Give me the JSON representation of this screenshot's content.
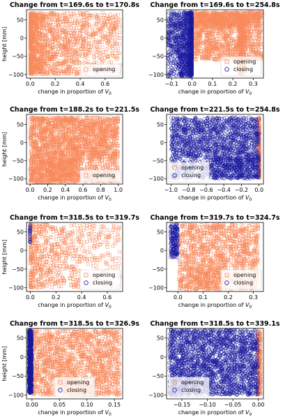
{
  "figure": {
    "type": "grid",
    "rows": 4,
    "cols": 2
  },
  "colors": {
    "opening": "#F88A5C",
    "closing": "#17179E",
    "frame": "#000000"
  },
  "chart_data": [
    {
      "type": "scatter",
      "title": "Change from t=169.6s to t=170.8s",
      "xlabel": "change in proportion of V0",
      "ylabel": "height [mm]",
      "xlim": [
        -0.03,
        0.74
      ],
      "ylim": [
        -110,
        78
      ],
      "xticks": [
        0,
        0.2,
        0.4,
        0.6
      ],
      "xticklabels": [
        "0.0",
        "0.2",
        "0.4",
        "0.6"
      ],
      "yticks": [
        50,
        0,
        -50,
        -100
      ],
      "yticklabels": [
        "50",
        "0",
        "−50",
        "−100"
      ],
      "legend": {
        "position": "lower-right",
        "entries": [
          "opening"
        ]
      },
      "series": [
        {
          "name": "opening",
          "marker": "square",
          "clusters": [
            {
              "x": [
                0,
                0.72
              ],
              "y": [
                -100,
                70
              ],
              "density": 1600,
              "shape": "fan",
              "x_bias": 2.2
            }
          ]
        }
      ]
    },
    {
      "type": "scatter",
      "title": "Change from t=169.6s to t=254.8s",
      "xlabel": "change in proportion of V0",
      "ylabel": "",
      "xlim": [
        -0.125,
        0.35
      ],
      "ylim": [
        -110,
        78
      ],
      "xticks": [
        -0.1,
        0.0,
        0.1,
        0.2,
        0.3
      ],
      "xticklabels": [
        "−0.1",
        "0.0",
        "0.1",
        "0.2",
        "0.3"
      ],
      "yticks": [
        50,
        0,
        -50,
        -100
      ],
      "yticklabels": [
        "50",
        "0",
        "−50",
        "−100"
      ],
      "legend": {
        "position": "lower-right",
        "entries": [
          "opening",
          "closing"
        ]
      },
      "series": [
        {
          "name": "opening",
          "marker": "square",
          "clusters": [
            {
              "x": [
                0.0,
                0.34
              ],
              "y": [
                -60,
                72
              ],
              "density": 1100,
              "shape": "uniform"
            },
            {
              "x": [
                0.23,
                0.26
              ],
              "y": [
                -100,
                70
              ],
              "density": 250,
              "shape": "uniform"
            },
            {
              "x": [
                0.0,
                0.34
              ],
              "y": [
                30,
                72
              ],
              "density": 500,
              "shape": "uniform"
            }
          ]
        },
        {
          "name": "closing",
          "marker": "circle",
          "clusters": [
            {
              "x": [
                -0.12,
                0.0
              ],
              "y": [
                -105,
                72
              ],
              "density": 1300,
              "shape": "fan-left",
              "x_bias": 2.0
            }
          ]
        }
      ]
    },
    {
      "type": "scatter",
      "title": "Change from t=188.2s to t=221.5s",
      "xlabel": "change in proportion of V0",
      "ylabel": "height [mm]",
      "xlim": [
        -0.04,
        1.05
      ],
      "ylim": [
        -115,
        78
      ],
      "xticks": [
        0,
        0.2,
        0.4,
        0.6,
        0.8,
        1.0
      ],
      "xticklabels": [
        "0.0",
        "0.2",
        "0.4",
        "0.6",
        "0.8",
        "1.0"
      ],
      "yticks": [
        50,
        0,
        -50,
        -100
      ],
      "yticklabels": [
        "50",
        "0",
        "−50",
        "−100"
      ],
      "legend": {
        "position": "lower-right",
        "entries": [
          "opening"
        ]
      },
      "series": [
        {
          "name": "opening",
          "marker": "square",
          "clusters": [
            {
              "x": [
                0,
                1.0
              ],
              "y": [
                -110,
                70
              ],
              "density": 2600,
              "shape": "fan",
              "x_bias": 1.0
            }
          ]
        }
      ]
    },
    {
      "type": "scatter",
      "title": "Change from t=221.5s to t=254.8s",
      "xlabel": "change in proportion of V0",
      "ylabel": "",
      "xlim": [
        -1.05,
        0.05
      ],
      "ylim": [
        -115,
        78
      ],
      "xticks": [
        -1.0,
        -0.8,
        -0.6,
        -0.4,
        -0.2,
        0.0
      ],
      "xticklabels": [
        "−1.0",
        "−0.8",
        "−0.6",
        "−0.4",
        "−0.2",
        "0.0"
      ],
      "yticks": [
        50,
        0,
        -50,
        -100
      ],
      "yticklabels": [
        "50",
        "0",
        "−50",
        "−100"
      ],
      "legend": {
        "position": "lower-left",
        "entries": [
          "opening",
          "closing"
        ]
      },
      "series": [
        {
          "name": "opening",
          "marker": "square",
          "clusters": [
            {
              "x": [
                -0.01,
                0.01
              ],
              "y": [
                -100,
                70
              ],
              "density": 150,
              "shape": "uniform"
            }
          ]
        },
        {
          "name": "closing",
          "marker": "circle",
          "clusters": [
            {
              "x": [
                -1.0,
                0.0
              ],
              "y": [
                -100,
                70
              ],
              "density": 2200,
              "shape": "fan-left",
              "x_bias": 1.0
            }
          ]
        }
      ]
    },
    {
      "type": "scatter",
      "title": "Change from t=318.5s to t=319.7s",
      "xlabel": "change in proportion of V0",
      "ylabel": "height [mm]",
      "xlim": [
        -0.03,
        0.72
      ],
      "ylim": [
        -110,
        75
      ],
      "xticks": [
        0,
        0.2,
        0.4,
        0.6
      ],
      "xticklabels": [
        "0.0",
        "0.2",
        "0.4",
        "0.6"
      ],
      "yticks": [
        50,
        0,
        -50,
        -100
      ],
      "yticklabels": [
        "50",
        "0",
        "−50",
        "−100"
      ],
      "legend": {
        "position": "lower-right",
        "entries": [
          "opening",
          "closing"
        ]
      },
      "series": [
        {
          "name": "opening",
          "marker": "square",
          "clusters": [
            {
              "x": [
                0,
                0.7
              ],
              "y": [
                -100,
                70
              ],
              "density": 700,
              "shape": "fan",
              "x_bias": 1.8
            }
          ]
        },
        {
          "name": "closing",
          "marker": "circle",
          "clusters": [
            {
              "x": [
                -0.005,
                0.0
              ],
              "y": [
                20,
                70
              ],
              "density": 25,
              "shape": "uniform"
            }
          ]
        }
      ]
    },
    {
      "type": "scatter",
      "title": "Change from t=319.7s to t=324.7s",
      "xlabel": "change in proportion of V0",
      "ylabel": "",
      "xlim": [
        -0.045,
        0.34
      ],
      "ylim": [
        -110,
        75
      ],
      "xticks": [
        0,
        0.1,
        0.2,
        0.3
      ],
      "xticklabels": [
        "0.0",
        "0.1",
        "0.2",
        "0.3"
      ],
      "yticks": [
        50,
        0,
        -50,
        -100
      ],
      "yticklabels": [
        "50",
        "0",
        "−50",
        "−100"
      ],
      "legend": {
        "position": "lower-right",
        "entries": [
          "opening",
          "closing"
        ]
      },
      "series": [
        {
          "name": "opening",
          "marker": "square",
          "clusters": [
            {
              "x": [
                0.0,
                0.32
              ],
              "y": [
                -105,
                70
              ],
              "density": 1300,
              "shape": "fan",
              "x_bias": 0.9
            }
          ]
        },
        {
          "name": "closing",
          "marker": "circle",
          "clusters": [
            {
              "x": [
                -0.03,
                0.0
              ],
              "y": [
                -20,
                72
              ],
              "density": 200,
              "shape": "uniform"
            }
          ]
        }
      ]
    },
    {
      "type": "scatter",
      "title": "Change from t=318.5s to t=326.9s",
      "xlabel": "change in proportion of V0",
      "ylabel": "height [mm]",
      "xlim": [
        -0.01,
        0.165
      ],
      "ylim": [
        -110,
        75
      ],
      "xticks": [
        0,
        0.05,
        0.1,
        0.15
      ],
      "xticklabels": [
        "0.00",
        "0.05",
        "0.10",
        "0.15"
      ],
      "yticks": [
        50,
        0,
        -50,
        -100
      ],
      "yticklabels": [
        "50",
        "0",
        "−50",
        "−100"
      ],
      "legend": {
        "position": "lower-center",
        "entries": [
          "opening",
          "closing"
        ]
      },
      "series": [
        {
          "name": "opening",
          "marker": "square",
          "clusters": [
            {
              "x": [
                0.0,
                0.16
              ],
              "y": [
                -100,
                70
              ],
              "density": 1500,
              "shape": "uniform"
            }
          ]
        },
        {
          "name": "closing",
          "marker": "circle",
          "clusters": [
            {
              "x": [
                -0.006,
                0.0
              ],
              "y": [
                -95,
                70
              ],
              "density": 700,
              "shape": "uniform"
            }
          ]
        }
      ]
    },
    {
      "type": "scatter",
      "title": "Change from t=318.5s to t=339.1s",
      "xlabel": "change in proportion of V0",
      "ylabel": "",
      "xlim": [
        -0.18,
        0.01
      ],
      "ylim": [
        -110,
        75
      ],
      "xticks": [
        -0.15,
        -0.1,
        -0.05,
        0.0
      ],
      "xticklabels": [
        "−0.15",
        "−0.10",
        "−0.05",
        "0.00"
      ],
      "yticks": [
        50,
        0,
        -50,
        -100
      ],
      "yticklabels": [
        "50",
        "0",
        "−50",
        "−100"
      ],
      "legend": {
        "position": "lower-left",
        "entries": [
          "opening",
          "closing"
        ]
      },
      "series": [
        {
          "name": "opening",
          "marker": "square",
          "clusters": [
            {
              "x": [
                -0.002,
                0.005
              ],
              "y": [
                -100,
                70
              ],
              "density": 220,
              "shape": "uniform"
            }
          ]
        },
        {
          "name": "closing",
          "marker": "circle",
          "clusters": [
            {
              "x": [
                -0.175,
                0.0
              ],
              "y": [
                -100,
                72
              ],
              "density": 2400,
              "shape": "uniform"
            }
          ]
        }
      ]
    }
  ]
}
